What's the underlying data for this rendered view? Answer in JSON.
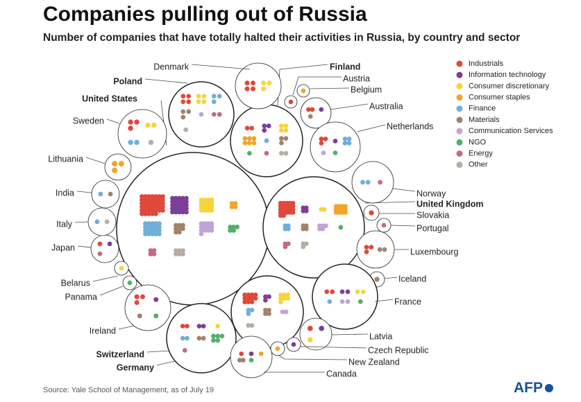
{
  "header": {
    "title": "Companies pulling out of Russia",
    "subtitle": "Number of companies that have totally halted their activities in Russia, by country and sector"
  },
  "footer": {
    "source": "Source: Yale School of Management, as of July 19",
    "logo": "AFP"
  },
  "colors": {
    "Industrials": "#e0483a",
    "Information technology": "#7b3f98",
    "Consumer discretionary": "#f7d53a",
    "Consumer staples": "#f2a42a",
    "Finance": "#6fafd9",
    "Materials": "#a0836a",
    "Communication Services": "#c0a4d6",
    "NGO": "#52b06a",
    "Energy": "#c36b86",
    "Other": "#b7aea3"
  },
  "chart_data": {
    "type": "bubble-cluster",
    "title": "Companies pulling out of Russia",
    "subtitle": "Number of companies that have totally halted their activities in Russia, by country and sector",
    "legend": [
      "Industrials",
      "Information technology",
      "Consumer discretionary",
      "Consumer staples",
      "Finance",
      "Materials",
      "Communication Services",
      "NGO",
      "Energy",
      "Other"
    ],
    "countries": [
      {
        "name": "United States",
        "bold": true,
        "sectors": {
          "Industrials": 40,
          "Information technology": 25,
          "Consumer discretionary": 16,
          "Consumer staples": 4,
          "Finance": 20,
          "Materials": 8,
          "Communication Services": 13,
          "NGO": 5,
          "Energy": 4,
          "Other": 6
        }
      },
      {
        "name": "United Kingdom",
        "bold": true,
        "sectors": {
          "Industrials": 22,
          "Information technology": 4,
          "Consumer discretionary": 2,
          "Consumer staples": 12,
          "Finance": 4,
          "Materials": 4,
          "Communication Services": 5,
          "NGO": 1,
          "Energy": 3,
          "Other": 3
        }
      },
      {
        "name": "Germany",
        "bold": true,
        "sectors": {
          "Industrials": 11,
          "Information technology": 3,
          "Consumer discretionary": 7,
          "Consumer staples": 0,
          "Finance": 3,
          "Materials": 4,
          "Communication Services": 2,
          "NGO": 0,
          "Energy": 0,
          "Other": 2
        }
      },
      {
        "name": "Switzerland",
        "bold": true,
        "sectors": {
          "Industrials": 2,
          "Information technology": 2,
          "Consumer discretionary": 1,
          "Consumer staples": 0,
          "Finance": 2,
          "Materials": 2,
          "Communication Services": 0,
          "NGO": 5,
          "Energy": 1,
          "Other": 0
        }
      },
      {
        "name": "Finland",
        "bold": true,
        "sectors": {
          "Industrials": 2,
          "Information technology": 3,
          "Consumer discretionary": 4,
          "Consumer staples": 6,
          "Finance": 1,
          "Materials": 3,
          "Communication Services": 0,
          "NGO": 1,
          "Energy": 1,
          "Other": 2
        }
      },
      {
        "name": "Poland",
        "bold": true,
        "sectors": {
          "Industrials": 4,
          "Information technology": 0,
          "Consumer discretionary": 4,
          "Consumer staples": 0,
          "Finance": 3,
          "Materials": 3,
          "Communication Services": 1,
          "NGO": 0,
          "Energy": 2,
          "Other": 1
        }
      },
      {
        "name": "Denmark",
        "bold": false,
        "sectors": {
          "Industrials": 4,
          "Information technology": 0,
          "Consumer discretionary": 3,
          "Consumer staples": 0,
          "Finance": 0,
          "Materials": 0,
          "Communication Services": 0,
          "NGO": 0,
          "Energy": 0,
          "Other": 0
        }
      },
      {
        "name": "Austria",
        "bold": false,
        "sectors": {
          "Industrials": 1,
          "Information technology": 0,
          "Consumer discretionary": 0,
          "Consumer staples": 0,
          "Finance": 0,
          "Materials": 0,
          "Communication Services": 0,
          "NGO": 0,
          "Energy": 0,
          "Other": 0
        }
      },
      {
        "name": "Belgium",
        "bold": false,
        "sectors": {
          "Industrials": 0,
          "Information technology": 0,
          "Consumer discretionary": 0,
          "Consumer staples": 1,
          "Finance": 0,
          "Materials": 0,
          "Communication Services": 0,
          "NGO": 0,
          "Energy": 0,
          "Other": 0
        }
      },
      {
        "name": "Australia",
        "bold": false,
        "sectors": {
          "Industrials": 2,
          "Information technology": 1,
          "Consumer discretionary": 0,
          "Consumer staples": 0,
          "Finance": 0,
          "Materials": 1,
          "Communication Services": 0,
          "NGO": 0,
          "Energy": 0,
          "Other": 0
        }
      },
      {
        "name": "Netherlands",
        "bold": false,
        "sectors": {
          "Industrials": 3,
          "Information technology": 1,
          "Consumer discretionary": 0,
          "Consumer staples": 0,
          "Finance": 4,
          "Materials": 0,
          "Communication Services": 1,
          "NGO": 1,
          "Energy": 0,
          "Other": 0
        }
      },
      {
        "name": "Norway",
        "bold": false,
        "sectors": {
          "Industrials": 0,
          "Information technology": 0,
          "Consumer discretionary": 0,
          "Consumer staples": 0,
          "Finance": 2,
          "Materials": 0,
          "Communication Services": 0,
          "NGO": 0,
          "Energy": 1,
          "Other": 0
        }
      },
      {
        "name": "Slovakia",
        "bold": false,
        "sectors": {
          "Industrials": 1,
          "Information technology": 0,
          "Consumer discretionary": 0,
          "Consumer staples": 0,
          "Finance": 0,
          "Materials": 0,
          "Communication Services": 0,
          "NGO": 0,
          "Energy": 0,
          "Other": 0
        }
      },
      {
        "name": "Portugal",
        "bold": false,
        "sectors": {
          "Industrials": 0,
          "Information technology": 0,
          "Consumer discretionary": 0,
          "Consumer staples": 0,
          "Finance": 0,
          "Materials": 0,
          "Communication Services": 0,
          "NGO": 0,
          "Energy": 1,
          "Other": 0
        }
      },
      {
        "name": "Luxembourg",
        "bold": false,
        "sectors": {
          "Industrials": 3,
          "Information technology": 0,
          "Consumer discretionary": 0,
          "Consumer staples": 0,
          "Finance": 0,
          "Materials": 2,
          "Communication Services": 0,
          "NGO": 0,
          "Energy": 0,
          "Other": 0
        }
      },
      {
        "name": "Iceland",
        "bold": false,
        "sectors": {
          "Industrials": 0,
          "Information technology": 0,
          "Consumer discretionary": 0,
          "Consumer staples": 0,
          "Finance": 0,
          "Materials": 1,
          "Communication Services": 0,
          "NGO": 0,
          "Energy": 0,
          "Other": 0
        }
      },
      {
        "name": "France",
        "bold": false,
        "sectors": {
          "Industrials": 2,
          "Information technology": 2,
          "Consumer discretionary": 2,
          "Consumer staples": 0,
          "Finance": 1,
          "Materials": 0,
          "Communication Services": 2,
          "NGO": 1,
          "Energy": 0,
          "Other": 0
        }
      },
      {
        "name": "Latvia",
        "bold": false,
        "sectors": {
          "Industrials": 1,
          "Information technology": 1,
          "Consumer discretionary": 1,
          "Consumer staples": 0,
          "Finance": 0,
          "Materials": 0,
          "Communication Services": 0,
          "NGO": 0,
          "Energy": 0,
          "Other": 0
        }
      },
      {
        "name": "Czech Republic",
        "bold": false,
        "sectors": {
          "Industrials": 0,
          "Information technology": 1,
          "Consumer discretionary": 0,
          "Consumer staples": 0,
          "Finance": 0,
          "Materials": 0,
          "Communication Services": 0,
          "NGO": 0,
          "Energy": 0,
          "Other": 0
        }
      },
      {
        "name": "New Zealand",
        "bold": false,
        "sectors": {
          "Industrials": 0,
          "Information technology": 0,
          "Consumer discretionary": 0,
          "Consumer staples": 1,
          "Finance": 0,
          "Materials": 0,
          "Communication Services": 0,
          "NGO": 0,
          "Energy": 0,
          "Other": 0
        }
      },
      {
        "name": "Canada",
        "bold": false,
        "sectors": {
          "Industrials": 1,
          "Information technology": 1,
          "Consumer discretionary": 0,
          "Consumer staples": 1,
          "Finance": 0,
          "Materials": 2,
          "Communication Services": 0,
          "NGO": 1,
          "Energy": 0,
          "Other": 0
        }
      },
      {
        "name": "Ireland",
        "bold": false,
        "sectors": {
          "Industrials": 3,
          "Information technology": 1,
          "Consumer discretionary": 0,
          "Consumer staples": 0,
          "Finance": 0,
          "Materials": 1,
          "Communication Services": 0,
          "NGO": 1,
          "Energy": 0,
          "Other": 0
        }
      },
      {
        "name": "Panama",
        "bold": false,
        "sectors": {
          "Industrials": 0,
          "Information technology": 0,
          "Consumer discretionary": 0,
          "Consumer staples": 0,
          "Finance": 0,
          "Materials": 0,
          "Communication Services": 0,
          "NGO": 1,
          "Energy": 0,
          "Other": 0
        }
      },
      {
        "name": "Belarus",
        "bold": false,
        "sectors": {
          "Industrials": 0,
          "Information technology": 0,
          "Consumer discretionary": 1,
          "Consumer staples": 0,
          "Finance": 0,
          "Materials": 0,
          "Communication Services": 0,
          "NGO": 0,
          "Energy": 0,
          "Other": 0
        }
      },
      {
        "name": "Japan",
        "bold": false,
        "sectors": {
          "Industrials": 1,
          "Information technology": 1,
          "Consumer discretionary": 0,
          "Consumer staples": 0,
          "Finance": 0,
          "Materials": 0,
          "Communication Services": 0,
          "NGO": 0,
          "Energy": 1,
          "Other": 0
        }
      },
      {
        "name": "Italy",
        "bold": false,
        "sectors": {
          "Industrials": 0,
          "Information technology": 0,
          "Consumer discretionary": 0,
          "Consumer staples": 0,
          "Finance": 1,
          "Materials": 0,
          "Communication Services": 0,
          "NGO": 0,
          "Energy": 0,
          "Other": 1
        }
      },
      {
        "name": "India",
        "bold": false,
        "sectors": {
          "Industrials": 0,
          "Information technology": 0,
          "Consumer discretionary": 0,
          "Consumer staples": 0,
          "Finance": 1,
          "Materials": 1,
          "Communication Services": 0,
          "NGO": 0,
          "Energy": 0,
          "Other": 0
        }
      },
      {
        "name": "Lithuania",
        "bold": false,
        "sectors": {
          "Industrials": 0,
          "Information technology": 0,
          "Consumer discretionary": 0,
          "Consumer staples": 3,
          "Finance": 0,
          "Materials": 0,
          "Communication Services": 0,
          "NGO": 0,
          "Energy": 0,
          "Other": 0
        }
      },
      {
        "name": "Sweden",
        "bold": false,
        "sectors": {
          "Industrials": 3,
          "Information technology": 0,
          "Consumer discretionary": 2,
          "Consumer staples": 0,
          "Finance": 2,
          "Materials": 0,
          "Communication Services": 0,
          "NGO": 0,
          "Energy": 0,
          "Other": 1
        }
      }
    ]
  }
}
